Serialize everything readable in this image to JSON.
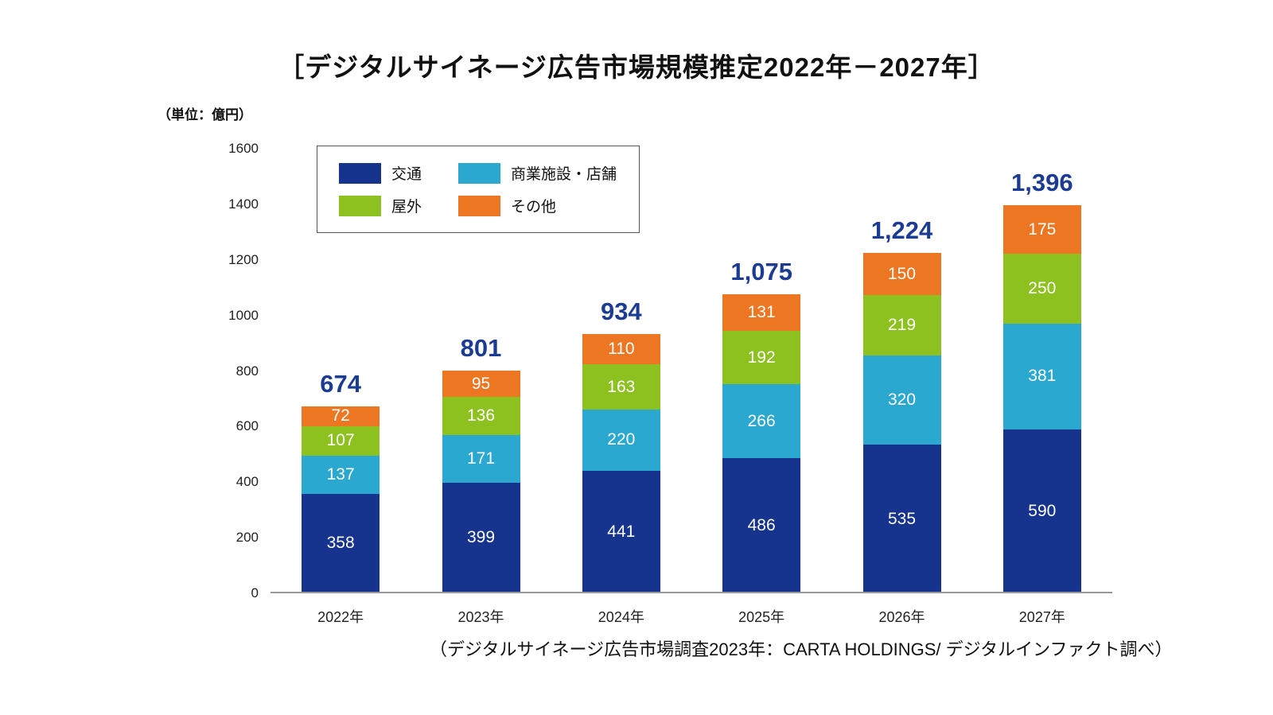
{
  "chart": {
    "title": "［デジタルサイネージ広告市場規模推定2022年－2027年］",
    "unit_label": "（単位：億円）",
    "source": "（デジタルサイネージ広告市場調査2023年：CARTA HOLDINGS/ デジタルインファクト調べ）"
  },
  "chart_data": {
    "type": "bar",
    "stacked": true,
    "title": "［デジタルサイネージ広告市場規模推定2022年－2027年］",
    "xlabel": "",
    "ylabel": "（単位：億円）",
    "ylim": [
      0,
      1600
    ],
    "yticks": [
      0,
      200,
      400,
      600,
      800,
      1000,
      1200,
      1400,
      1600
    ],
    "grid": false,
    "legend_position": "upper-left inside",
    "categories": [
      "2022年",
      "2023年",
      "2024年",
      "2025年",
      "2026年",
      "2027年"
    ],
    "series": [
      {
        "name": "交通",
        "color": "#16348E",
        "values": [
          358,
          399,
          441,
          486,
          535,
          590
        ]
      },
      {
        "name": "商業施設・店舗",
        "color": "#2AA8D0",
        "values": [
          137,
          171,
          220,
          266,
          320,
          381
        ]
      },
      {
        "name": "屋外",
        "color": "#8CC120",
        "values": [
          107,
          136,
          163,
          192,
          219,
          250
        ]
      },
      {
        "name": "その他",
        "color": "#ED7622",
        "values": [
          72,
          95,
          110,
          131,
          150,
          175
        ]
      }
    ],
    "totals": [
      "674",
      "801",
      "934",
      "1,075",
      "1,224",
      "1,396"
    ],
    "total_label_color": "#1C3C94",
    "value_label_color": "#FFFFFF"
  }
}
